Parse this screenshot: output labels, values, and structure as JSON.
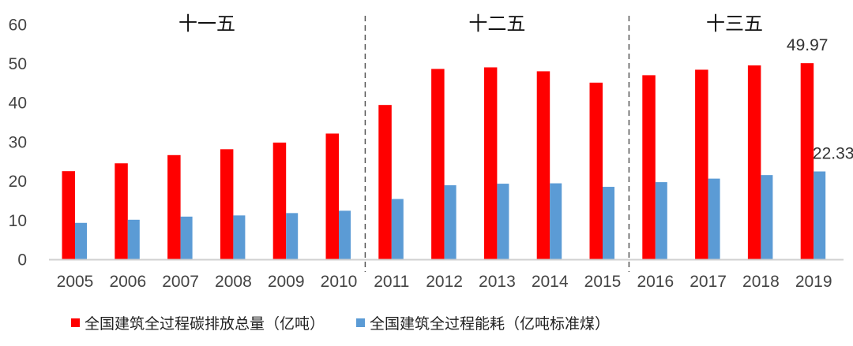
{
  "chart_data": {
    "type": "bar",
    "categories": [
      "2005",
      "2006",
      "2007",
      "2008",
      "2009",
      "2010",
      "2011",
      "2012",
      "2013",
      "2014",
      "2015",
      "2016",
      "2017",
      "2018",
      "2019"
    ],
    "series": [
      {
        "name": "全国建筑全过程碳排放总量（亿吨）",
        "color": "#ff0000",
        "values": [
          22.4,
          24.4,
          26.5,
          28.0,
          29.7,
          32.0,
          39.3,
          48.5,
          48.9,
          47.9,
          45.0,
          46.9,
          48.3,
          49.4,
          49.97
        ]
      },
      {
        "name": "全国建筑全过程能耗（亿吨标准煤）",
        "color": "#5b9bd5",
        "values": [
          9.2,
          10.0,
          10.8,
          11.1,
          11.7,
          12.3,
          15.3,
          18.8,
          19.2,
          19.3,
          18.4,
          19.6,
          20.5,
          21.4,
          22.33
        ]
      }
    ],
    "data_labels": [
      {
        "series": 0,
        "category": "2019",
        "text": "49.97"
      },
      {
        "series": 1,
        "category": "2019",
        "text": "22.33"
      }
    ],
    "periods": [
      {
        "label": "十一五",
        "from": "2005",
        "to": "2010"
      },
      {
        "label": "十二五",
        "from": "2011",
        "to": "2015"
      },
      {
        "label": "十三五",
        "from": "2016",
        "to": "2019"
      }
    ],
    "yticks": [
      "0",
      "10",
      "20",
      "30",
      "40",
      "50",
      "60"
    ],
    "ylim": [
      0,
      60
    ],
    "grid": false,
    "legend": "bottom"
  }
}
